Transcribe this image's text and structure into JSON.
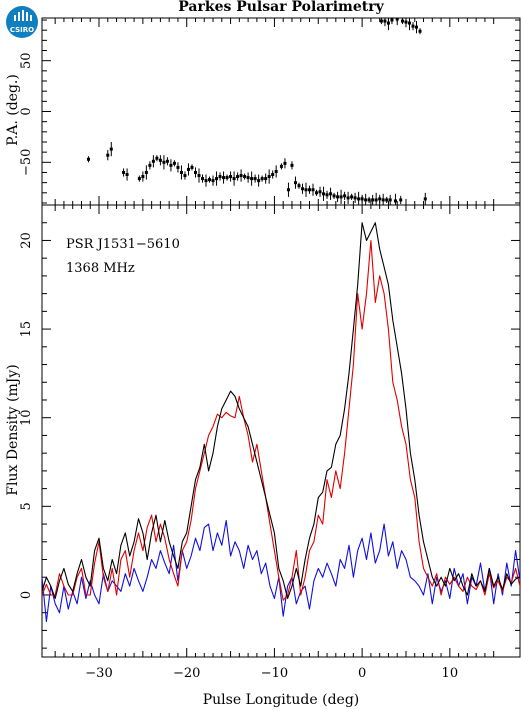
{
  "logo": {
    "text": "CSIRO",
    "color": "#0f7fbf"
  },
  "chart_data": [
    {
      "type": "scatter",
      "title": "Parkes Pulsar Polarimetry",
      "xlabel": "",
      "ylabel": "P.A. (deg.)",
      "xlim": [
        -36.5,
        18
      ],
      "ylim": [
        -92,
        92
      ],
      "xticks": [
        -30,
        -20,
        -10,
        0,
        10
      ],
      "yticks": [
        -50,
        0,
        50
      ],
      "ytick_labels": [
        "−50",
        "0",
        "50"
      ],
      "show_xtick_labels": false,
      "marker_color": "#000000",
      "series": [
        {
          "x": [
            -31.2,
            -29.0,
            -28.6,
            -27.2,
            -26.8,
            -25.4,
            -25.0,
            -24.6,
            -24.2,
            -23.8,
            -23.4,
            -23.0,
            -22.6,
            -22.2,
            -21.8,
            -21.4,
            -21.0,
            -20.6,
            -20.2,
            -19.8,
            -19.4,
            -19.0,
            -18.6,
            -18.2,
            -17.8,
            -17.4,
            -17.0,
            -16.6,
            -16.2,
            -15.8,
            -15.4,
            -15.0,
            -14.6,
            -14.2,
            -13.8,
            -13.4,
            -13.0,
            -12.6,
            -12.2,
            -11.8,
            -11.4,
            -11.0,
            -10.6,
            -10.2,
            -9.8,
            -9.2,
            -8.8,
            -8.4,
            -8.0,
            -7.6,
            -7.2,
            -6.8,
            -6.4,
            -6.0,
            -5.6,
            -5.2,
            -4.8,
            -4.4,
            -4.0,
            -3.6,
            -3.2,
            -2.8,
            -2.4,
            -2.0,
            -1.6,
            -1.2,
            -0.8,
            -0.4,
            0.0,
            0.4,
            0.8,
            1.2,
            1.6,
            2.0,
            2.4,
            2.8,
            3.2,
            3.8,
            4.4,
            7.2
          ],
          "y": [
            -47,
            -43,
            -37,
            -60,
            -62,
            -66,
            -64,
            -60,
            -53,
            -49,
            -46,
            -48,
            -50,
            -49,
            -53,
            -51,
            -55,
            -60,
            -63,
            -57,
            -55,
            -60,
            -63,
            -66,
            -68,
            -67,
            -68,
            -66,
            -64,
            -65,
            -65,
            -64,
            -66,
            -64,
            -63,
            -64,
            -65,
            -66,
            -66,
            -68,
            -66,
            -66,
            -64,
            -62,
            -59,
            -54,
            -51,
            -77,
            -53,
            -70,
            -73,
            -76,
            -77,
            -77,
            -77,
            -80,
            -79,
            -81,
            -82,
            -81,
            -83,
            -84,
            -84,
            -83,
            -85,
            -84,
            -85,
            -86,
            -86,
            -87,
            -87,
            -87,
            -87,
            -86,
            -87,
            -87,
            -87,
            -88,
            -87,
            -86
          ]
        },
        {
          "x": [
            2.2,
            2.6,
            3.0,
            3.4,
            4.0,
            4.6,
            5.0,
            5.4,
            5.8,
            6.2,
            6.6
          ],
          "y": [
            89,
            89,
            87,
            90,
            91,
            89,
            88,
            87,
            84,
            83,
            79
          ]
        }
      ]
    },
    {
      "type": "line",
      "title": "",
      "xlabel": "Pulse Longitude (deg)",
      "ylabel": "Flux Density (mJy)",
      "xlim": [
        -36.5,
        18
      ],
      "ylim": [
        -3.5,
        22
      ],
      "xticks": [
        -30,
        -20,
        -10,
        0,
        10
      ],
      "xtick_labels": [
        "−30",
        "−20",
        "−10",
        "0",
        "10"
      ],
      "yticks": [
        0,
        5,
        10,
        15,
        20
      ],
      "annotations": [
        "PSR J1531−5610",
        "1368 MHz"
      ],
      "series": [
        {
          "color": "#000000",
          "x": [
            -36.5,
            -36.0,
            -35.5,
            -35.0,
            -34.5,
            -34.0,
            -33.5,
            -33.0,
            -32.5,
            -32.0,
            -31.5,
            -31.0,
            -30.5,
            -30.0,
            -29.5,
            -29.0,
            -28.5,
            -28.0,
            -27.5,
            -27.0,
            -26.5,
            -26.0,
            -25.5,
            -25.0,
            -24.5,
            -24.0,
            -23.5,
            -23.0,
            -22.5,
            -22.0,
            -21.5,
            -21.0,
            -20.5,
            -20.0,
            -19.5,
            -19.0,
            -18.5,
            -18.0,
            -17.5,
            -17.0,
            -16.5,
            -16.0,
            -15.5,
            -15.0,
            -14.5,
            -14.0,
            -13.5,
            -13.0,
            -12.5,
            -12.0,
            -11.5,
            -11.0,
            -10.5,
            -10.0,
            -9.5,
            -9.0,
            -8.5,
            -8.0,
            -7.5,
            -7.0,
            -6.5,
            -6.0,
            -5.5,
            -5.0,
            -4.5,
            -4.0,
            -3.5,
            -3.0,
            -2.5,
            -2.0,
            -1.5,
            -1.0,
            -0.5,
            0.0,
            0.5,
            1.0,
            1.5,
            2.0,
            2.5,
            3.0,
            3.5,
            4.0,
            4.5,
            5.0,
            5.5,
            6.0,
            6.5,
            7.0,
            7.5,
            8.0,
            8.5,
            9.0,
            9.5,
            10.0,
            10.5,
            11.0,
            11.5,
            12.0,
            12.5,
            13.0,
            13.5,
            14.0,
            14.5,
            15.0,
            15.5,
            16.0,
            16.5,
            17.0,
            17.5,
            18.0
          ],
          "y": [
            0.2,
            1.0,
            0.5,
            -0.2,
            0.8,
            1.5,
            0.6,
            0.2,
            1.2,
            2.0,
            1.0,
            0.5,
            2.5,
            3.2,
            1.5,
            0.8,
            2.0,
            1.2,
            2.8,
            3.5,
            2.2,
            3.0,
            4.3,
            3.5,
            2.0,
            3.5,
            4.5,
            3.0,
            4.2,
            3.0,
            2.2,
            1.5,
            3.0,
            3.5,
            5.0,
            6.5,
            7.2,
            8.5,
            7.0,
            8.0,
            9.5,
            10.5,
            11.0,
            11.5,
            11.2,
            10.5,
            10.0,
            9.5,
            8.5,
            7.5,
            6.5,
            5.5,
            4.5,
            3.5,
            1.5,
            0.8,
            -0.2,
            0.5,
            1.5,
            0.5,
            2.0,
            3.2,
            4.0,
            5.5,
            5.8,
            7.0,
            7.2,
            8.5,
            9.0,
            10.5,
            12.5,
            15.0,
            17.5,
            21.0,
            20.0,
            20.5,
            21.0,
            19.5,
            18.5,
            17.5,
            15.5,
            14.0,
            12.5,
            10.5,
            8.0,
            6.5,
            4.5,
            3.0,
            2.0,
            1.0,
            0.5,
            1.0,
            0.5,
            1.5,
            0.8,
            1.2,
            0.5,
            0.0,
            1.2,
            0.5,
            0.8,
            0.2,
            1.5,
            0.5,
            1.0,
            0.3,
            1.2,
            0.6,
            0.9,
            1.0
          ]
        },
        {
          "color": "#e00000",
          "x": [
            -36.5,
            -36.0,
            -35.5,
            -35.0,
            -34.5,
            -34.0,
            -33.5,
            -33.0,
            -32.5,
            -32.0,
            -31.5,
            -31.0,
            -30.5,
            -30.0,
            -29.5,
            -29.0,
            -28.5,
            -28.0,
            -27.5,
            -27.0,
            -26.5,
            -26.0,
            -25.5,
            -25.0,
            -24.5,
            -24.0,
            -23.5,
            -23.0,
            -22.5,
            -22.0,
            -21.5,
            -21.0,
            -20.5,
            -20.0,
            -19.5,
            -19.0,
            -18.5,
            -18.0,
            -17.5,
            -17.0,
            -16.5,
            -16.0,
            -15.5,
            -15.0,
            -14.5,
            -14.0,
            -13.5,
            -13.0,
            -12.5,
            -12.0,
            -11.5,
            -11.0,
            -10.5,
            -10.0,
            -9.5,
            -9.0,
            -8.5,
            -8.0,
            -7.5,
            -7.0,
            -6.5,
            -6.0,
            -5.5,
            -5.0,
            -4.5,
            -4.0,
            -3.5,
            -3.0,
            -2.5,
            -2.0,
            -1.5,
            -1.0,
            -0.5,
            0.0,
            0.5,
            1.0,
            1.5,
            2.0,
            2.5,
            3.0,
            3.5,
            4.0,
            4.5,
            5.0,
            5.5,
            6.0,
            6.5,
            7.0,
            7.5,
            8.0,
            8.5,
            9.0,
            9.5,
            10.0,
            10.5,
            11.0,
            11.5,
            12.0,
            12.5,
            13.0,
            13.5,
            14.0,
            14.5,
            15.0,
            15.5,
            16.0,
            16.5,
            17.0,
            17.5,
            18.0
          ],
          "y": [
            0.0,
            0.6,
            0.0,
            0.0,
            1.2,
            0.5,
            0.0,
            0.0,
            1.0,
            1.5,
            0.0,
            0.0,
            1.8,
            3.0,
            1.0,
            0.2,
            1.5,
            0.0,
            2.0,
            2.5,
            1.0,
            2.5,
            3.5,
            2.5,
            3.8,
            4.5,
            3.0,
            4.0,
            3.2,
            2.0,
            1.2,
            0.5,
            2.5,
            3.0,
            4.2,
            6.0,
            7.0,
            8.0,
            9.0,
            9.5,
            10.2,
            10.0,
            10.3,
            10.1,
            10.0,
            11.2,
            10.0,
            9.0,
            7.5,
            8.5,
            7.0,
            5.5,
            4.0,
            2.5,
            1.0,
            -0.3,
            0.0,
            1.0,
            2.5,
            0.0,
            1.0,
            2.5,
            3.0,
            4.5,
            4.0,
            6.5,
            5.5,
            7.0,
            6.0,
            8.0,
            10.5,
            13.0,
            17.0,
            15.0,
            17.0,
            20.0,
            16.5,
            18.0,
            17.0,
            15.0,
            12.0,
            11.0,
            9.5,
            8.5,
            6.5,
            5.5,
            3.0,
            1.5,
            1.0,
            0.5,
            1.2,
            0.0,
            1.0,
            0.6,
            1.0,
            0.5,
            0.2,
            1.0,
            0.5,
            0.3,
            0.8,
            0.0,
            1.2,
            0.4,
            0.8,
            0.2,
            1.0,
            0.7,
            1.5,
            0.5
          ]
        },
        {
          "color": "#1010e0",
          "x": [
            -36.5,
            -36.0,
            -35.5,
            -35.0,
            -34.5,
            -34.0,
            -33.5,
            -33.0,
            -32.5,
            -32.0,
            -31.5,
            -31.0,
            -30.5,
            -30.0,
            -29.5,
            -29.0,
            -28.5,
            -28.0,
            -27.5,
            -27.0,
            -26.5,
            -26.0,
            -25.5,
            -25.0,
            -24.5,
            -24.0,
            -23.5,
            -23.0,
            -22.5,
            -22.0,
            -21.5,
            -21.0,
            -20.5,
            -20.0,
            -19.5,
            -19.0,
            -18.5,
            -18.0,
            -17.5,
            -17.0,
            -16.5,
            -16.0,
            -15.5,
            -15.0,
            -14.5,
            -14.0,
            -13.5,
            -13.0,
            -12.5,
            -12.0,
            -11.5,
            -11.0,
            -10.5,
            -10.0,
            -9.5,
            -9.0,
            -8.5,
            -8.0,
            -7.5,
            -7.0,
            -6.5,
            -6.0,
            -5.5,
            -5.0,
            -4.5,
            -4.0,
            -3.5,
            -3.0,
            -2.5,
            -2.0,
            -1.5,
            -1.0,
            -0.5,
            0.0,
            0.5,
            1.0,
            1.5,
            2.0,
            2.5,
            3.0,
            3.5,
            4.0,
            4.5,
            5.0,
            5.5,
            6.0,
            6.5,
            7.0,
            7.5,
            8.0,
            8.5,
            9.0,
            9.5,
            10.0,
            10.5,
            11.0,
            11.5,
            12.0,
            12.5,
            13.0,
            13.5,
            14.0,
            14.5,
            15.0,
            15.5,
            16.0,
            16.5,
            17.0,
            17.5,
            18.0
          ],
          "y": [
            1.0,
            -1.5,
            0.5,
            -0.5,
            -1.0,
            0.5,
            -0.8,
            0.2,
            -0.5,
            1.0,
            -0.2,
            0.8,
            0.0,
            -0.5,
            1.2,
            0.2,
            0.8,
            0.5,
            0.2,
            1.2,
            0.5,
            1.5,
            0.8,
            0.2,
            1.0,
            2.0,
            1.5,
            2.5,
            1.8,
            1.2,
            2.8,
            0.8,
            2.5,
            1.5,
            2.2,
            3.2,
            2.5,
            3.8,
            4.0,
            2.5,
            3.5,
            2.8,
            4.2,
            2.2,
            3.0,
            2.5,
            1.5,
            2.8,
            2.0,
            2.5,
            1.2,
            1.8,
            0.5,
            -0.2,
            1.0,
            -1.2,
            0.5,
            1.0,
            -0.5,
            0.2,
            0.5,
            -0.8,
            0.8,
            1.5,
            1.0,
            1.8,
            1.2,
            0.5,
            2.0,
            1.5,
            2.8,
            1.0,
            2.5,
            3.2,
            2.0,
            3.5,
            1.8,
            2.5,
            4.0,
            2.2,
            3.0,
            1.5,
            2.5,
            2.0,
            1.0,
            0.8,
            0.5,
            0.0,
            1.2,
            -0.5,
            1.0,
            0.2,
            0.8,
            -0.2,
            1.5,
            0.5,
            1.2,
            -0.5,
            1.0,
            0.5,
            1.8,
            0.2,
            1.5,
            -0.5,
            1.2,
            0.0,
            1.8,
            0.5,
            2.5,
            0.8
          ]
        }
      ]
    }
  ]
}
